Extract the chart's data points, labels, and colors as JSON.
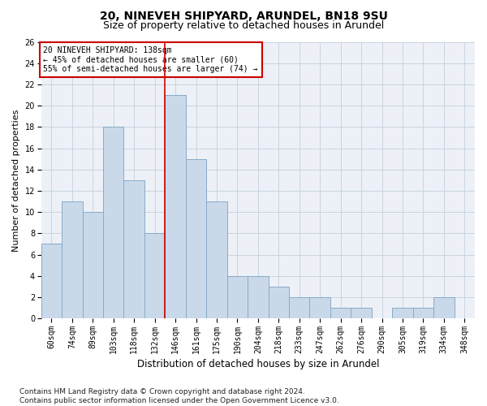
{
  "title1": "20, NINEVEH SHIPYARD, ARUNDEL, BN18 9SU",
  "title2": "Size of property relative to detached houses in Arundel",
  "xlabel": "Distribution of detached houses by size in Arundel",
  "ylabel": "Number of detached properties",
  "categories": [
    "60sqm",
    "74sqm",
    "89sqm",
    "103sqm",
    "118sqm",
    "132sqm",
    "146sqm",
    "161sqm",
    "175sqm",
    "190sqm",
    "204sqm",
    "218sqm",
    "233sqm",
    "247sqm",
    "262sqm",
    "276sqm",
    "290sqm",
    "305sqm",
    "319sqm",
    "334sqm",
    "348sqm"
  ],
  "values": [
    7,
    11,
    10,
    18,
    13,
    8,
    21,
    15,
    11,
    4,
    4,
    3,
    2,
    2,
    1,
    1,
    0,
    1,
    1,
    2,
    0
  ],
  "bar_color": "#c9d9ea",
  "bar_edge_color": "#89aac8",
  "vline_index": 6,
  "vline_color": "#cc0000",
  "annotation_box_text": "20 NINEVEH SHIPYARD: 138sqm\n← 45% of detached houses are smaller (60)\n55% of semi-detached houses are larger (74) →",
  "annotation_box_edge_color": "#cc0000",
  "ylim": [
    0,
    26
  ],
  "yticks": [
    0,
    2,
    4,
    6,
    8,
    10,
    12,
    14,
    16,
    18,
    20,
    22,
    24,
    26
  ],
  "grid_color": "#c8d4e0",
  "background_color": "#edf1f7",
  "footnote": "Contains HM Land Registry data © Crown copyright and database right 2024.\nContains public sector information licensed under the Open Government Licence v3.0.",
  "title1_fontsize": 10,
  "title2_fontsize": 9,
  "xlabel_fontsize": 8.5,
  "ylabel_fontsize": 8,
  "tick_fontsize": 7,
  "annot_fontsize": 7,
  "footnote_fontsize": 6.5
}
